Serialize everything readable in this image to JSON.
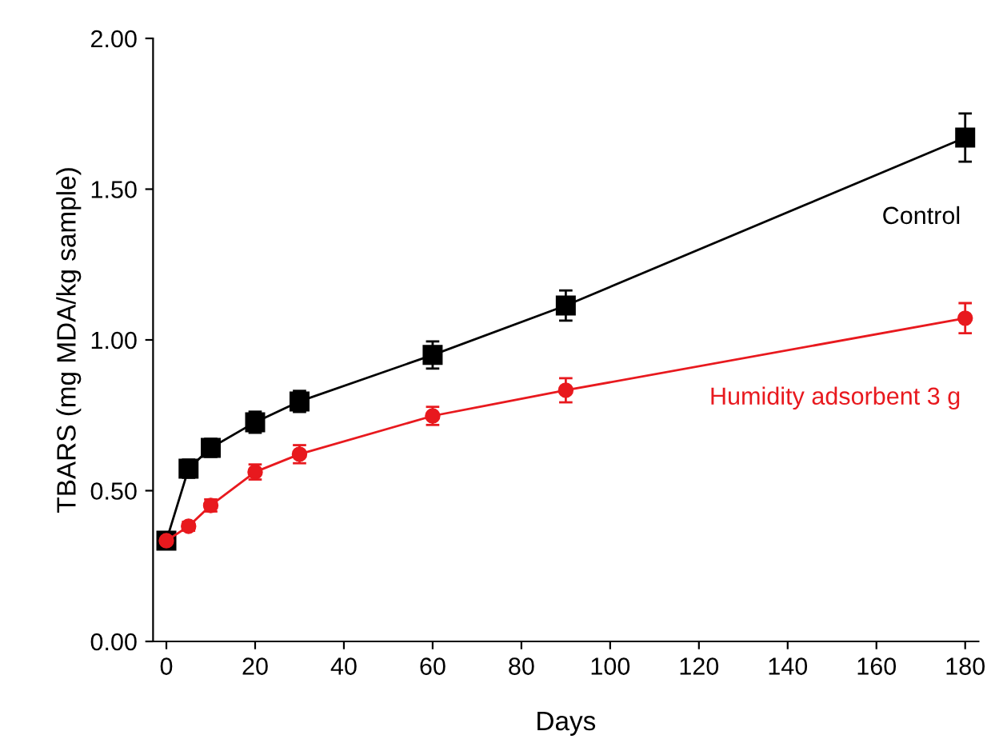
{
  "chart_data": {
    "type": "line",
    "xlabel": "Days",
    "ylabel": "TBARS (mg MDA/kg sample)",
    "x": [
      0,
      5,
      10,
      20,
      30,
      60,
      90,
      180
    ],
    "series": [
      {
        "name": "Control",
        "color": "#000000",
        "marker": "square",
        "values": [
          0.334,
          0.573,
          0.642,
          0.727,
          0.796,
          0.95,
          1.114,
          1.671
        ],
        "errors": [
          0.015,
          0.03,
          0.03,
          0.035,
          0.035,
          0.045,
          0.05,
          0.08
        ]
      },
      {
        "name": "Humidity adsorbent 3 g",
        "color": "#e8191e",
        "marker": "circle",
        "values": [
          0.334,
          0.382,
          0.451,
          0.562,
          0.621,
          0.748,
          0.833,
          1.072
        ],
        "errors": [
          0.015,
          0.015,
          0.02,
          0.025,
          0.03,
          0.03,
          0.04,
          0.05
        ]
      }
    ],
    "xlim": [
      -3,
      183
    ],
    "ylim": [
      0,
      2
    ],
    "xticks": [
      0,
      20,
      40,
      60,
      80,
      100,
      120,
      140,
      160,
      180
    ],
    "yticks": [
      {
        "value": 0,
        "label": "0.00"
      },
      {
        "value": 0.5,
        "label": "0.50"
      },
      {
        "value": 1,
        "label": "1.00"
      },
      {
        "value": 1.5,
        "label": "1.50"
      },
      {
        "value": 2,
        "label": "2.00"
      }
    ],
    "grid": false,
    "legend": false,
    "line_style": "solid"
  }
}
